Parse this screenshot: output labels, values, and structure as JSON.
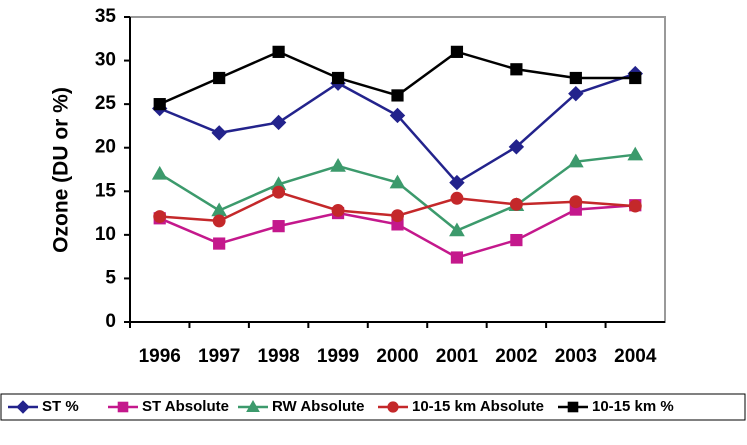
{
  "chart_data": {
    "type": "line",
    "y_label": "Ozone (DU or %)",
    "categories": [
      "1996",
      "1997",
      "1998",
      "1999",
      "2000",
      "2001",
      "2002",
      "2003",
      "2004"
    ],
    "series": [
      {
        "name": "ST %",
        "color": "#23238c",
        "marker": "diamond",
        "values": [
          24.5,
          21.7,
          22.9,
          27.4,
          23.7,
          16.0,
          20.1,
          26.2,
          28.5
        ]
      },
      {
        "name": "ST Absolute",
        "color": "#c4188c",
        "marker": "square",
        "values": [
          11.9,
          9.0,
          11.0,
          12.5,
          11.2,
          7.4,
          9.4,
          12.9,
          13.4
        ]
      },
      {
        "name": "RW Absolute",
        "color": "#3c9a6c",
        "marker": "triangle",
        "values": [
          17.0,
          12.8,
          15.8,
          17.9,
          16.0,
          10.5,
          13.4,
          18.4,
          19.2
        ]
      },
      {
        "name": "10-15 km Absolute",
        "color": "#c4282a",
        "marker": "circle",
        "values": [
          12.1,
          11.6,
          14.9,
          12.8,
          12.2,
          14.2,
          13.5,
          13.8,
          13.3
        ]
      },
      {
        "name": "10-15 km %",
        "color": "#000000",
        "marker": "square",
        "values": [
          25,
          28,
          31,
          28,
          26,
          31,
          29,
          28,
          28
        ]
      }
    ],
    "ylim": [
      0,
      35
    ],
    "yticks": [
      0,
      5,
      10,
      15,
      20,
      25,
      30,
      35
    ],
    "grid": false
  }
}
